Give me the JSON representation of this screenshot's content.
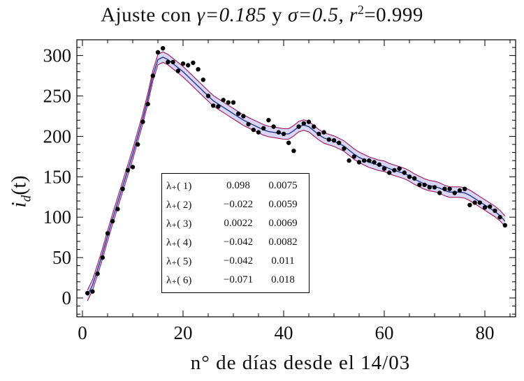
{
  "title_parts": {
    "prefix": "Ajuste con ",
    "gamma_expr": "γ=0.185",
    "mid": " y ",
    "sigma_expr": "σ=0.5, ",
    "r2_expr": "r",
    "r2_sup": "2",
    "r2_val": "=0.999"
  },
  "chart_data": {
    "type": "scatter",
    "title": "Ajuste con γ=0.185 y σ=0.5, r²=0.999",
    "xlabel": "n° de días desde el 14/03",
    "ylabel": "i_d(t)",
    "xlim": [
      0,
      85
    ],
    "ylim": [
      -22,
      322
    ],
    "x_ticks": [
      0,
      20,
      40,
      60,
      80
    ],
    "y_ticks": [
      0,
      50,
      100,
      150,
      200,
      250,
      300
    ],
    "grid": false,
    "colors": {
      "points": "#000000",
      "fit": "#1a2a8c",
      "band_fill": "#c9c9f2",
      "band_edge": "#a0165a"
    },
    "series": [
      {
        "kind": "points",
        "x": [
          1,
          2,
          3,
          4,
          5,
          6,
          7,
          8,
          9,
          10,
          11,
          12,
          13,
          14,
          15,
          16,
          17,
          18,
          19,
          20,
          21,
          22,
          23,
          24,
          25,
          26,
          27,
          28,
          29,
          30,
          31,
          32,
          33,
          34,
          35,
          36,
          37,
          38,
          39,
          40,
          41,
          42,
          43,
          44,
          45,
          46,
          47,
          48,
          49,
          50,
          51,
          52,
          53,
          54,
          55,
          56,
          57,
          58,
          59,
          60,
          61,
          62,
          63,
          64,
          65,
          66,
          67,
          68,
          69,
          70,
          71,
          72,
          73,
          74,
          75,
          76,
          77,
          78,
          79,
          80,
          81,
          82,
          83,
          84
        ],
        "y": [
          6,
          8,
          30,
          50,
          80,
          95,
          110,
          135,
          158,
          162,
          190,
          218,
          240,
          275,
          304,
          309,
          292,
          292,
          281,
          290,
          288,
          291,
          283,
          270,
          250,
          238,
          237,
          245,
          242,
          242,
          228,
          225,
          215,
          208,
          205,
          210,
          220,
          212,
          205,
          203,
          192,
          182,
          212,
          216,
          218,
          212,
          203,
          205,
          196,
          195,
          192,
          185,
          170,
          175,
          168,
          170,
          170,
          168,
          165,
          160,
          155,
          158,
          160,
          155,
          150,
          148,
          140,
          140,
          137,
          137,
          130,
          135,
          135,
          130,
          133,
          135,
          115,
          118,
          118,
          112,
          113,
          108,
          100,
          90
        ]
      },
      {
        "kind": "fit",
        "x": [
          1,
          2,
          3,
          4,
          5,
          6,
          7,
          8,
          9,
          10,
          11,
          12,
          13,
          14,
          15,
          16,
          17,
          18,
          19,
          20,
          21,
          22,
          23,
          24,
          25,
          26,
          27,
          28,
          29,
          30,
          31,
          32,
          33,
          34,
          35,
          36,
          37,
          38,
          39,
          40,
          41,
          42,
          43,
          44,
          45,
          46,
          47,
          48,
          49,
          50,
          51,
          52,
          53,
          54,
          55,
          56,
          57,
          58,
          59,
          60,
          61,
          62,
          63,
          64,
          65,
          66,
          67,
          68,
          69,
          70,
          71,
          72,
          73,
          74,
          75,
          76,
          77,
          78,
          79,
          80,
          81,
          82,
          83,
          84
        ],
        "y": [
          3,
          16,
          35,
          55,
          77,
          98,
          118,
          138,
          158,
          178,
          200,
          222,
          247,
          275,
          295,
          298,
          295,
          290,
          285,
          280,
          274,
          268,
          262,
          256,
          250,
          244,
          240,
          236,
          232,
          228,
          224,
          220,
          217,
          214,
          211,
          208,
          206,
          205,
          204,
          203,
          203,
          207,
          212,
          214,
          212,
          207,
          202,
          198,
          196,
          194,
          191,
          188,
          183,
          178,
          174,
          171,
          168,
          166,
          164,
          163,
          160,
          158,
          156,
          154,
          151,
          147,
          144,
          141,
          139,
          138,
          136,
          133,
          131,
          131,
          131,
          130,
          127,
          123,
          119,
          115,
          111,
          107,
          102,
          95
        ]
      }
    ],
    "legend_table": [
      {
        "label": "λ₊( 1)",
        "value": "0.098",
        "error": "0.0075"
      },
      {
        "label": "λ₊( 2)",
        "value": "−0.022",
        "error": "0.0059"
      },
      {
        "label": "λ₊( 3)",
        "value": "0.0022",
        "error": "0.0069"
      },
      {
        "label": "λ₊( 4)",
        "value": "−0.042",
        "error": "0.0082"
      },
      {
        "label": "λ₊( 5)",
        "value": "−0.042",
        "error": "0.011"
      },
      {
        "label": "λ₊( 6)",
        "value": "−0.071",
        "error": "0.018"
      }
    ]
  }
}
